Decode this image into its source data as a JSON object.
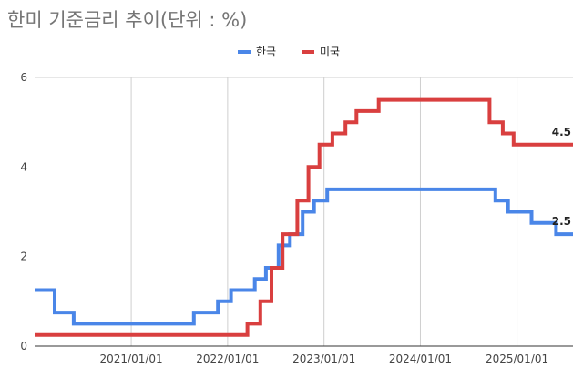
{
  "chart_data": {
    "type": "line",
    "title": "한미 기준금리 추이(단위 : %)",
    "xlabel": "",
    "ylabel": "",
    "x_range": [
      "2020-01-01",
      "2025-08-01"
    ],
    "ylim": [
      0,
      6
    ],
    "y_ticks": [
      "0",
      "2",
      "4",
      "6"
    ],
    "x_ticks": [
      {
        "date": "2021-01-01",
        "label": "2021/01/01"
      },
      {
        "date": "2022-01-01",
        "label": "2022/01/01"
      },
      {
        "date": "2023-01-01",
        "label": "2023/01/01"
      },
      {
        "date": "2024-01-01",
        "label": "2024/01/01"
      },
      {
        "date": "2025-01-01",
        "label": "2025/01/01"
      }
    ],
    "grid": "vertical",
    "legend_position": "top-center",
    "step_line": true,
    "series": [
      {
        "name": "한국",
        "color": "#4a86e8",
        "end_label": "2.5",
        "points": [
          {
            "x": "2020-01-01",
            "y": 1.25
          },
          {
            "x": "2020-03-17",
            "y": 0.75
          },
          {
            "x": "2020-05-28",
            "y": 0.5
          },
          {
            "x": "2021-08-26",
            "y": 0.75
          },
          {
            "x": "2021-11-25",
            "y": 1.0
          },
          {
            "x": "2022-01-14",
            "y": 1.25
          },
          {
            "x": "2022-04-14",
            "y": 1.5
          },
          {
            "x": "2022-05-26",
            "y": 1.75
          },
          {
            "x": "2022-07-13",
            "y": 2.25
          },
          {
            "x": "2022-08-25",
            "y": 2.5
          },
          {
            "x": "2022-10-12",
            "y": 3.0
          },
          {
            "x": "2022-11-24",
            "y": 3.25
          },
          {
            "x": "2023-01-13",
            "y": 3.5
          },
          {
            "x": "2024-10-11",
            "y": 3.25
          },
          {
            "x": "2024-11-28",
            "y": 3.0
          },
          {
            "x": "2025-02-25",
            "y": 2.75
          },
          {
            "x": "2025-05-29",
            "y": 2.5
          },
          {
            "x": "2025-08-01",
            "y": 2.5
          }
        ]
      },
      {
        "name": "미국",
        "color": "#d93f3f",
        "end_label": "4.5",
        "points": [
          {
            "x": "2020-01-01",
            "y": 0.25
          },
          {
            "x": "2022-03-17",
            "y": 0.5
          },
          {
            "x": "2022-05-05",
            "y": 1.0
          },
          {
            "x": "2022-06-16",
            "y": 1.75
          },
          {
            "x": "2022-07-28",
            "y": 2.5
          },
          {
            "x": "2022-09-22",
            "y": 3.25
          },
          {
            "x": "2022-11-03",
            "y": 4.0
          },
          {
            "x": "2022-12-15",
            "y": 4.5
          },
          {
            "x": "2023-02-02",
            "y": 4.75
          },
          {
            "x": "2023-03-23",
            "y": 5.0
          },
          {
            "x": "2023-05-04",
            "y": 5.25
          },
          {
            "x": "2023-07-27",
            "y": 5.5
          },
          {
            "x": "2024-09-19",
            "y": 5.0
          },
          {
            "x": "2024-11-08",
            "y": 4.75
          },
          {
            "x": "2024-12-19",
            "y": 4.5
          },
          {
            "x": "2025-08-01",
            "y": 4.5
          }
        ]
      }
    ]
  }
}
